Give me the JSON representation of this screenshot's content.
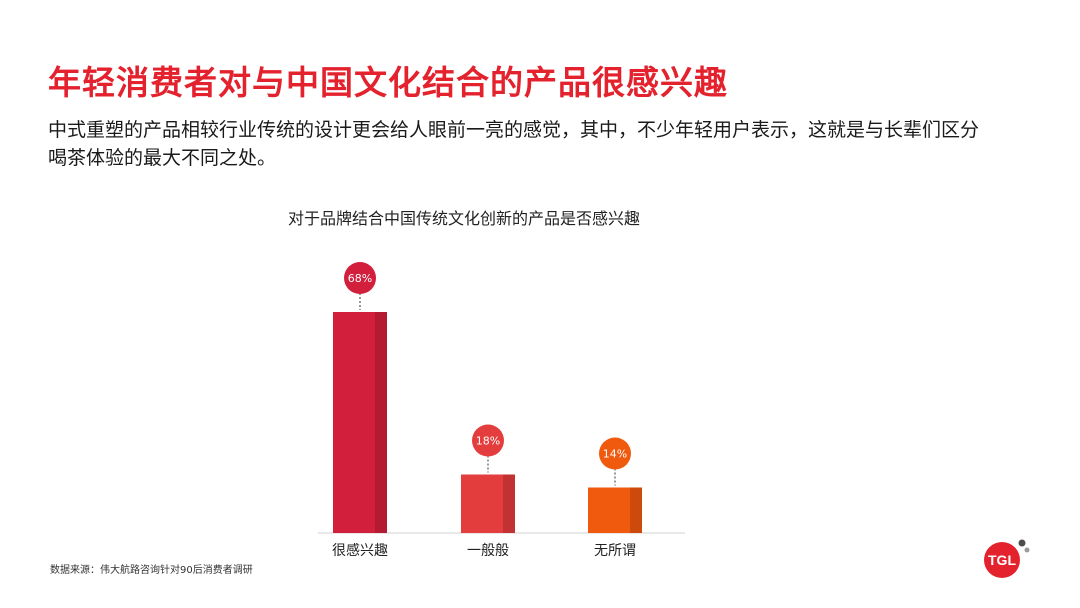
{
  "headline": "年轻消费者对与中国文化结合的产品很感兴趣",
  "intro": "中式重塑的产品相较行业传统的设计更会给人眼前一亮的感觉，其中，不少年轻用户表示，这就是与长辈们区分喝茶体验的最大不同之处。",
  "footnote": "数据来源：伟大航路咨询针对90后消费者调研",
  "logo": {
    "text": "TGL",
    "color": "#e4222e"
  },
  "chart_data": {
    "type": "bar",
    "title": "对于品牌结合中国传统文化创新的产品是否感兴趣",
    "categories": [
      "很感兴趣",
      "一般般",
      "无所谓"
    ],
    "values": [
      68,
      18,
      14
    ],
    "value_labels": [
      "68%",
      "18%",
      "14%"
    ],
    "unit": "%",
    "colors": [
      "#d21f3c",
      "#e43d3d",
      "#ef5a0f"
    ],
    "shade_colors": [
      "#b51a33",
      "#c23233",
      "#cc4a0c"
    ],
    "ylim": [
      0,
      80
    ],
    "grid": false,
    "legend": "none"
  }
}
